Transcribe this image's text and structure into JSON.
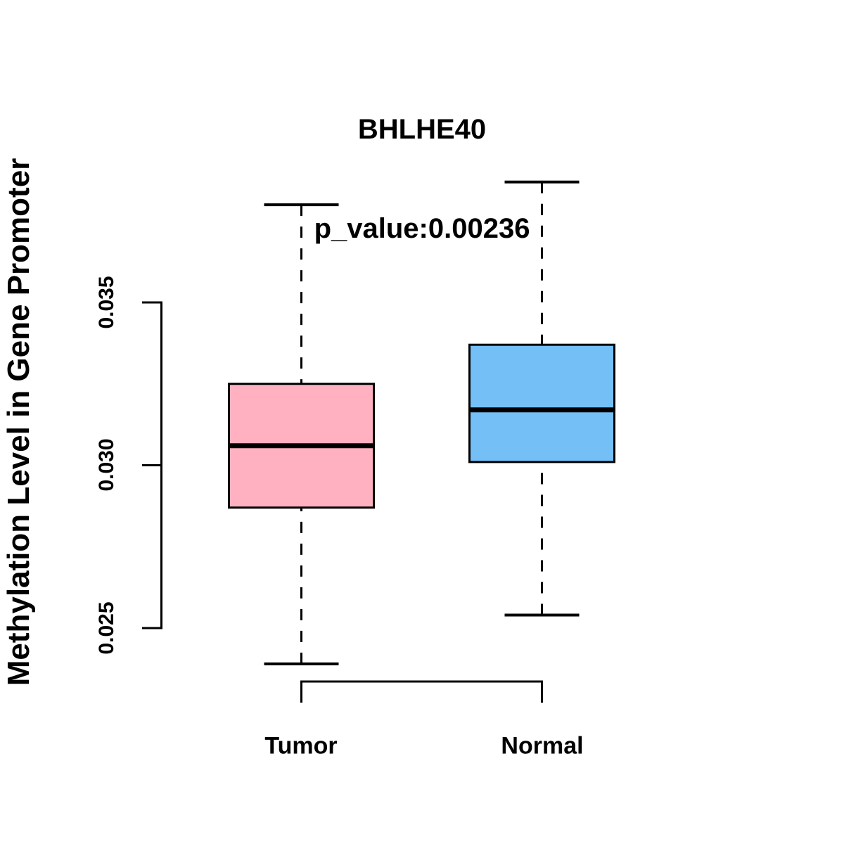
{
  "figure": {
    "background": "#FFFFFF"
  },
  "chart_data": {
    "type": "boxplot",
    "title": "BHLHE40",
    "subtitle": "p_value:0.00236",
    "ylabel": "Methylation Level in Gene Promoter",
    "xlabel": "",
    "categories": [
      "Tumor",
      "Normal"
    ],
    "yticks": [
      0.025,
      0.03,
      0.035
    ],
    "ytick_labels": [
      "0.025",
      "0.030",
      "0.035"
    ],
    "ylim": [
      0.0236,
      0.0392
    ],
    "grid": false,
    "legend": "none",
    "axis_color": "#000000",
    "text_color": "#000000",
    "series": [
      {
        "name": "Tumor",
        "color": "#FFB1C1",
        "whisker_low": 0.0239,
        "q1": 0.0287,
        "median": 0.0306,
        "q3": 0.0325,
        "whisker_high": 0.038
      },
      {
        "name": "Normal",
        "color": "#74BFF6",
        "whisker_low": 0.0254,
        "q1": 0.0301,
        "median": 0.0317,
        "q3": 0.0337,
        "whisker_high": 0.0387
      }
    ]
  }
}
